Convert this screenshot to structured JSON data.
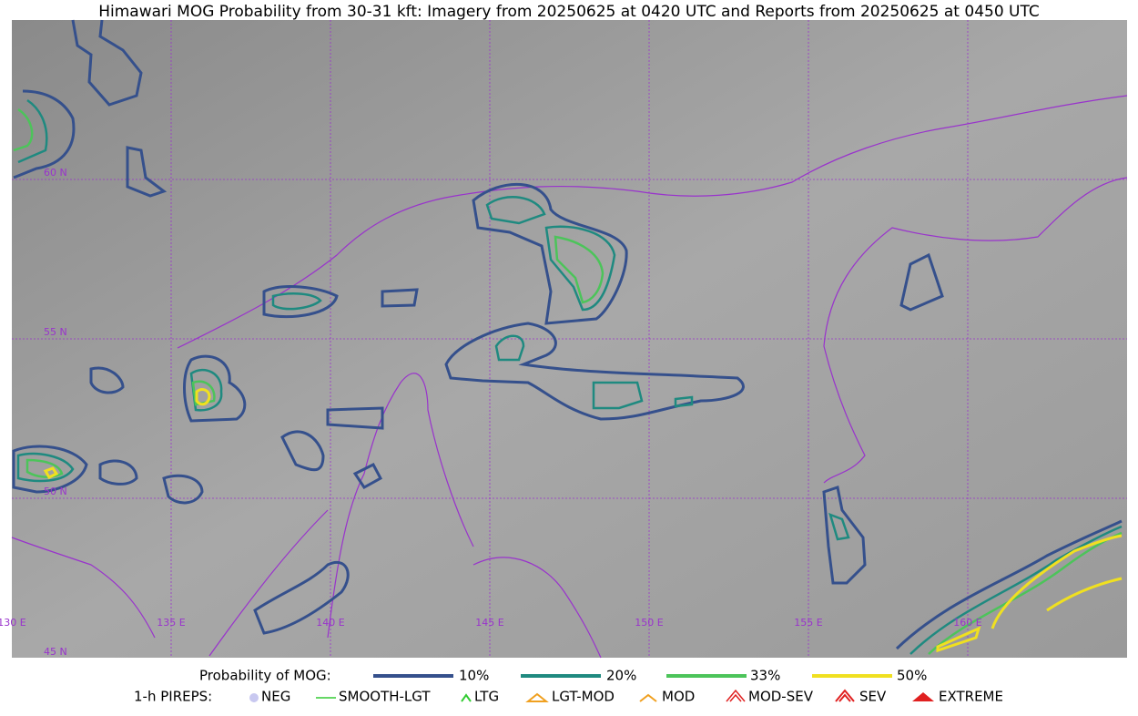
{
  "title": "Himawari MOG Probability from 30-31 kft: Imagery from 20250625 at 0420 UTC and Reports from 20250625 at 0450 UTC",
  "lat_labels": [
    "60 N",
    "55 N",
    "50 N",
    "45 N"
  ],
  "lon_labels": [
    "130 E",
    "135 E",
    "140 E",
    "145 E",
    "150 E",
    "155 E",
    "160 E"
  ],
  "legend": {
    "probability": {
      "label": "Probability of MOG:",
      "items": [
        "10%",
        "20%",
        "33%",
        "50%"
      ]
    },
    "pireps": {
      "label": "1-h PIREPS:",
      "items": [
        "NEG",
        "SMOOTH-LGT",
        "LTG",
        "LGT-MOD",
        "MOD",
        "MOD-SEV",
        "SEV",
        "EXTREME"
      ]
    }
  }
}
